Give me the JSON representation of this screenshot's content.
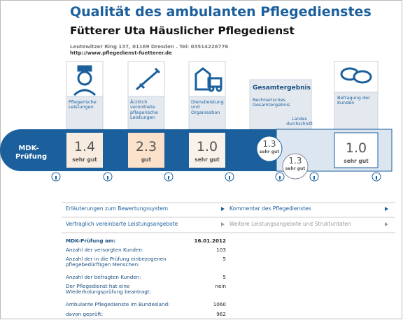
{
  "header": {
    "title": "Qualität des ambulanten Pflegedienstes",
    "provider": "Fütterer Uta Häuslicher Pflegedienst",
    "address": "Leutewitzer Ring 137, 01169 Dresden . Tel: 03514226776",
    "website": "http://www.pflegedienst-fuetterer.de"
  },
  "categories": [
    {
      "label": "Pflegerische Leistungen"
    },
    {
      "label": "Ärztlich verordnete pflegerische Leistungen"
    },
    {
      "label": "Dienstleistung und Organisation"
    },
    {
      "heading": "Gesamtergebnis",
      "label": "Rechnerisches Gesamtergebnis"
    },
    {
      "label": "Befragung der Kunden"
    }
  ],
  "band_label": "MDK-Prüfung",
  "scores": [
    {
      "value": "1.4",
      "grade": "sehr gut"
    },
    {
      "value": "2.3",
      "grade": "gut"
    },
    {
      "value": "1.0",
      "grade": "sehr gut"
    },
    {
      "value": "1.3",
      "grade": "sehr gut"
    },
    {
      "value": "1.0",
      "grade": "sehr gut"
    }
  ],
  "state_average": {
    "label": "Landes durchschnitt",
    "value": "1.3",
    "grade": "sehr gut"
  },
  "links": [
    "Erläuterungen zum Bewertungssystem",
    "Kommentar des Pflegedienstes",
    "Vertraglich vereinbarte Leistungsangebote",
    "Weitere Leistungsangebote und Strukturdaten"
  ],
  "details": [
    {
      "label": "MDK-Prüfung am:",
      "value": "16.01.2012"
    },
    {
      "label": "Anzahl der versorgten Kunden:",
      "value": "103"
    },
    {
      "label": "Anzahl der in die Prüfung einbezogenen pflegebedürftigen Menschen:",
      "value": "5"
    },
    {
      "label": "Anzahl der befragten Kunden:",
      "value": "5"
    },
    {
      "label": "Der Pflegedienst hat eine Wiederholungsprüfung beantragt:",
      "value": "nein"
    },
    {
      "label": "Ambulante Pflegedienste im Bundesland:",
      "value": "1060"
    },
    {
      "label": "davon geprüft:",
      "value": "962"
    }
  ]
}
